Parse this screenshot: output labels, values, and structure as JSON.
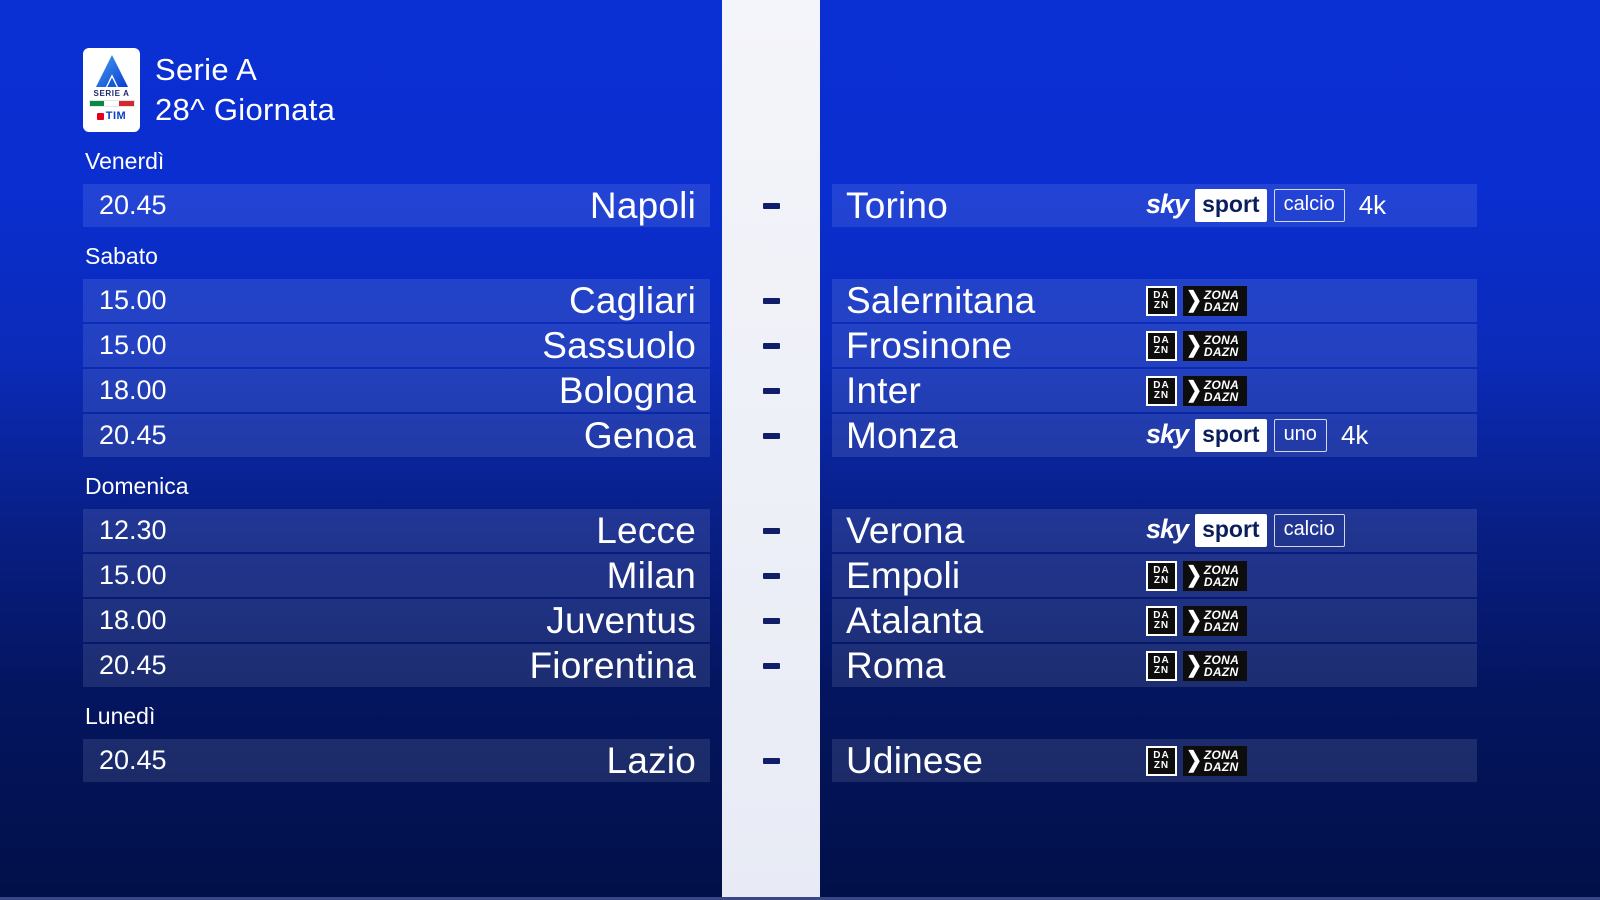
{
  "header": {
    "competition": "Serie A",
    "round": "28^ Giornata"
  },
  "serie_a_card": {
    "league": "SERIE A",
    "sponsor": "TIM"
  },
  "separator_dash": "-",
  "broadcast_logos": {
    "sky": {
      "brand": "sky",
      "product": "sport",
      "uhd_label": "4k"
    },
    "dazn": {
      "box_top": "DA",
      "box_bottom": "ZN",
      "zona_top": "ZONA",
      "zona_bottom": "DAZN"
    }
  },
  "days": [
    {
      "label": "Venerdì",
      "matches": [
        {
          "time": "20.45",
          "home": "Napoli",
          "away": "Torino",
          "tv": {
            "type": "sky",
            "channel": "calcio",
            "uhd": "4k"
          }
        }
      ]
    },
    {
      "label": "Sabato",
      "matches": [
        {
          "time": "15.00",
          "home": "Cagliari",
          "away": "Salernitana",
          "tv": {
            "type": "dazn"
          }
        },
        {
          "time": "15.00",
          "home": "Sassuolo",
          "away": "Frosinone",
          "tv": {
            "type": "dazn"
          }
        },
        {
          "time": "18.00",
          "home": "Bologna",
          "away": "Inter",
          "tv": {
            "type": "dazn"
          }
        },
        {
          "time": "20.45",
          "home": "Genoa",
          "away": "Monza",
          "tv": {
            "type": "sky",
            "channel": "uno",
            "uhd": "4k"
          }
        }
      ]
    },
    {
      "label": "Domenica",
      "matches": [
        {
          "time": "12.30",
          "home": "Lecce",
          "away": "Verona",
          "tv": {
            "type": "sky",
            "channel": "calcio"
          }
        },
        {
          "time": "15.00",
          "home": "Milan",
          "away": "Empoli",
          "tv": {
            "type": "dazn"
          }
        },
        {
          "time": "18.00",
          "home": "Juventus",
          "away": "Atalanta",
          "tv": {
            "type": "dazn"
          }
        },
        {
          "time": "20.45",
          "home": "Fiorentina",
          "away": "Roma",
          "tv": {
            "type": "dazn"
          }
        }
      ]
    },
    {
      "label": "Lunedì",
      "matches": [
        {
          "time": "20.45",
          "home": "Lazio",
          "away": "Udinese",
          "tv": {
            "type": "dazn"
          }
        }
      ]
    }
  ],
  "colors": {
    "background_top": "#0a2fd3",
    "background_bottom": "#021049",
    "row_overlay": "rgba(240,244,255,0.11)",
    "divider_stripe": "#edeff7",
    "dash": "#101e69",
    "dazn_black": "#0d0d0d",
    "sky_navy": "#0a1e5e",
    "text": "#ffffff"
  }
}
